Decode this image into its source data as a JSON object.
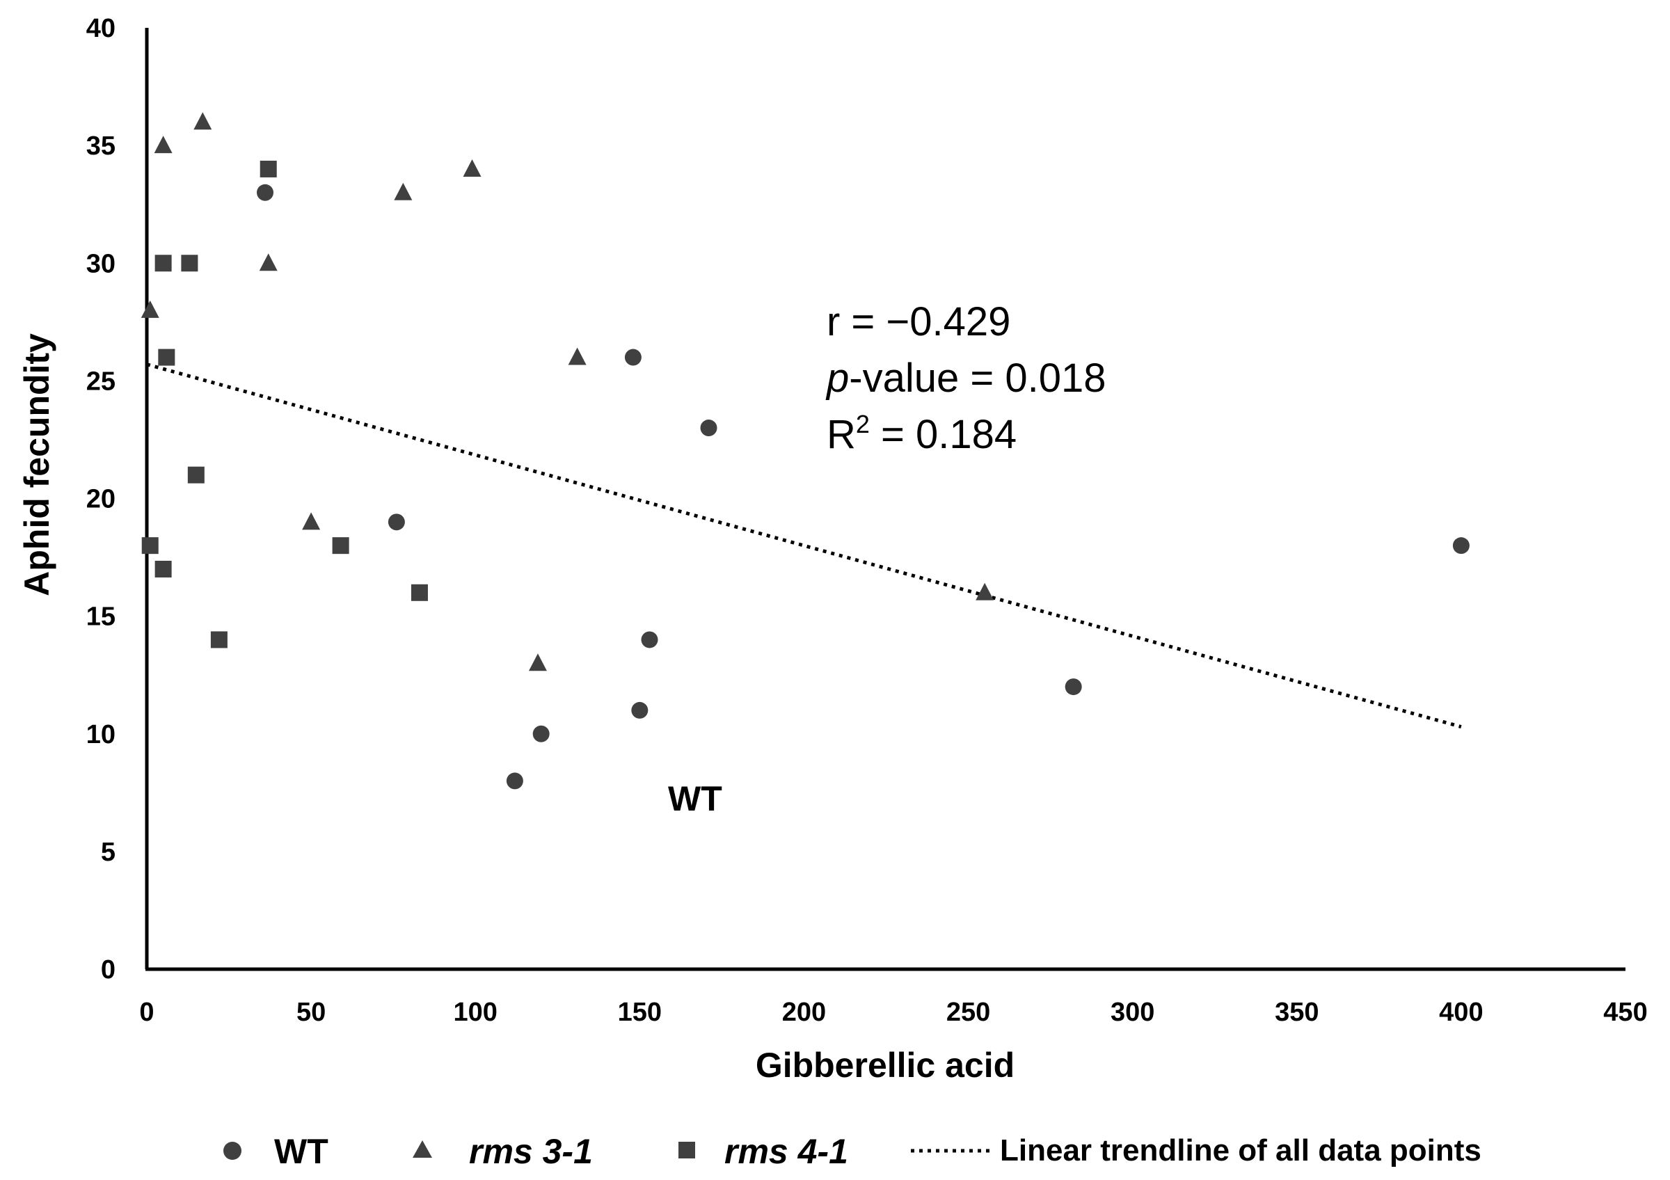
{
  "chart_data": {
    "type": "scatter",
    "title": "",
    "xlabel": "Gibberellic acid",
    "ylabel": "Aphid fecundity",
    "xlim": [
      0,
      450
    ],
    "ylim": [
      0,
      40
    ],
    "x_ticks": [
      "0",
      "50",
      "100",
      "150",
      "200",
      "250",
      "300",
      "350",
      "400",
      "450"
    ],
    "y_ticks": [
      "0",
      "5",
      "10",
      "15",
      "20",
      "25",
      "30",
      "35",
      "40"
    ],
    "grid": false,
    "series": [
      {
        "name": "WT",
        "marker": "circle",
        "points": [
          {
            "x": 36,
            "y": 33
          },
          {
            "x": 76,
            "y": 19
          },
          {
            "x": 112,
            "y": 8
          },
          {
            "x": 120,
            "y": 10
          },
          {
            "x": 148,
            "y": 26
          },
          {
            "x": 150,
            "y": 11
          },
          {
            "x": 153,
            "y": 14
          },
          {
            "x": 171,
            "y": 23
          },
          {
            "x": 282,
            "y": 12
          },
          {
            "x": 400,
            "y": 18
          }
        ]
      },
      {
        "name": "rms 3-1",
        "marker": "triangle",
        "points": [
          {
            "x": 1,
            "y": 28
          },
          {
            "x": 5,
            "y": 35
          },
          {
            "x": 17,
            "y": 36
          },
          {
            "x": 37,
            "y": 30
          },
          {
            "x": 50,
            "y": 19
          },
          {
            "x": 78,
            "y": 33
          },
          {
            "x": 99,
            "y": 34
          },
          {
            "x": 119,
            "y": 13
          },
          {
            "x": 131,
            "y": 26
          },
          {
            "x": 255,
            "y": 16
          }
        ]
      },
      {
        "name": "rms 4-1",
        "marker": "square",
        "points": [
          {
            "x": 1,
            "y": 18
          },
          {
            "x": 5,
            "y": 30
          },
          {
            "x": 5,
            "y": 17
          },
          {
            "x": 6,
            "y": 26
          },
          {
            "x": 13,
            "y": 30
          },
          {
            "x": 15,
            "y": 21
          },
          {
            "x": 22,
            "y": 14
          },
          {
            "x": 37,
            "y": 34
          },
          {
            "x": 59,
            "y": 18
          },
          {
            "x": 83,
            "y": 16
          }
        ]
      }
    ],
    "trendline": {
      "name": "Linear trendline of all data points",
      "x_start": 0,
      "y_start": 25.7,
      "x_end": 400,
      "y_end": 10.3
    },
    "annotations": {
      "r_text": "r = −0.429",
      "p_label": "p",
      "p_text": "-value = 0.018",
      "r2_base": "R",
      "r2_sup": "2",
      "r2_text": " = 0.184",
      "wt_label": "WT"
    },
    "legend": {
      "position": "bottom",
      "items": [
        {
          "label": "WT",
          "marker": "circle"
        },
        {
          "label": "rms 3-1",
          "marker": "triangle"
        },
        {
          "label": "rms 4-1",
          "marker": "square"
        },
        {
          "label": "Linear trendline of all data points",
          "marker": "dotted-line"
        }
      ]
    }
  },
  "colors": {
    "marker": "#404040",
    "axis": "#000000",
    "text": "#000000"
  }
}
